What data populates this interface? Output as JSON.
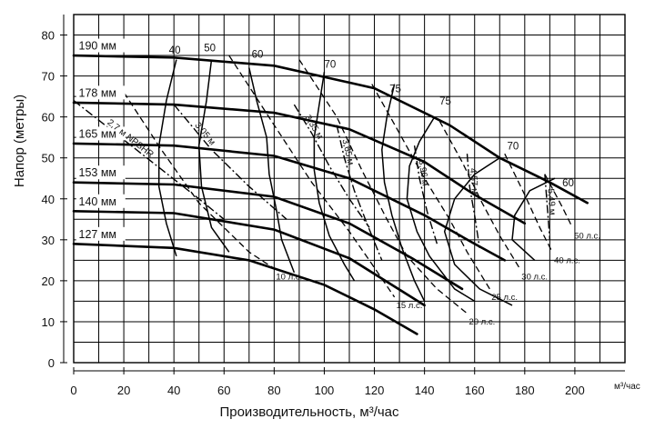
{
  "chart_data": {
    "type": "line",
    "title": "",
    "xlabel": "Производительность, м³/час",
    "ylabel": "Напор (метры)",
    "x_unit": "м³/час",
    "xlim": [
      0,
      220
    ],
    "ylim": [
      0,
      85
    ],
    "x_ticks": [
      0,
      20,
      40,
      60,
      80,
      100,
      120,
      140,
      160,
      180,
      200
    ],
    "y_ticks": [
      0,
      10,
      20,
      30,
      40,
      50,
      60,
      70,
      80
    ],
    "grid": true,
    "impeller_curves": [
      {
        "name": "190 мм",
        "points": [
          [
            0,
            75
          ],
          [
            40,
            74.5
          ],
          [
            80,
            72.5
          ],
          [
            120,
            67
          ],
          [
            150,
            58
          ],
          [
            170,
            50
          ],
          [
            190,
            44
          ],
          [
            205,
            39
          ]
        ]
      },
      {
        "name": "178 мм",
        "points": [
          [
            0,
            63.5
          ],
          [
            40,
            63
          ],
          [
            80,
            61
          ],
          [
            110,
            57
          ],
          [
            140,
            49
          ],
          [
            160,
            41
          ],
          [
            180,
            34
          ]
        ]
      },
      {
        "name": "165 мм",
        "points": [
          [
            0,
            53.5
          ],
          [
            40,
            53
          ],
          [
            80,
            50.5
          ],
          [
            110,
            45
          ],
          [
            140,
            36
          ],
          [
            160,
            29
          ],
          [
            172,
            25
          ]
        ]
      },
      {
        "name": "153 мм",
        "points": [
          [
            0,
            44
          ],
          [
            40,
            43.5
          ],
          [
            80,
            40.5
          ],
          [
            110,
            34
          ],
          [
            135,
            25.5
          ],
          [
            155,
            18
          ]
        ]
      },
      {
        "name": "140 мм",
        "points": [
          [
            0,
            37
          ],
          [
            40,
            36.5
          ],
          [
            80,
            32.5
          ],
          [
            110,
            25.5
          ],
          [
            140,
            14
          ]
        ]
      },
      {
        "name": "127 мм",
        "points": [
          [
            0,
            29
          ],
          [
            40,
            28
          ],
          [
            70,
            25
          ],
          [
            100,
            19
          ],
          [
            120,
            13
          ],
          [
            137,
            7
          ]
        ]
      }
    ],
    "efficiency_curves": [
      {
        "label": "40",
        "points": [
          [
            41,
            74
          ],
          [
            37,
            64
          ],
          [
            34,
            53
          ],
          [
            34,
            43
          ],
          [
            37,
            34
          ],
          [
            41,
            26
          ]
        ]
      },
      {
        "label": "50",
        "points": [
          [
            55,
            74
          ],
          [
            53,
            64
          ],
          [
            50,
            53
          ],
          [
            51,
            43
          ],
          [
            55,
            33
          ],
          [
            62,
            27
          ]
        ]
      },
      {
        "label": "60",
        "points": [
          [
            70,
            72
          ],
          [
            73,
            64
          ],
          [
            77,
            55
          ],
          [
            78,
            46
          ],
          [
            81,
            37
          ],
          [
            83,
            30
          ],
          [
            88,
            22
          ]
        ]
      },
      {
        "label": "70",
        "points": [
          [
            100,
            71
          ],
          [
            98,
            63
          ],
          [
            96,
            55
          ],
          [
            96,
            47
          ],
          [
            98,
            39
          ],
          [
            102,
            31
          ],
          [
            108,
            24
          ],
          [
            112,
            20
          ]
        ]
      },
      {
        "label": "75",
        "points": [
          [
            128,
            68
          ],
          [
            125,
            60
          ],
          [
            123,
            52
          ],
          [
            124,
            44
          ],
          [
            127,
            36
          ],
          [
            131,
            28
          ],
          [
            136,
            20
          ],
          [
            140,
            15
          ]
        ]
      },
      {
        "label": "75",
        "points": [
          [
            144,
            60
          ],
          [
            138,
            54
          ],
          [
            134,
            48
          ],
          [
            133,
            40
          ],
          [
            137,
            32
          ],
          [
            142,
            26
          ],
          [
            152,
            18
          ],
          [
            160,
            15
          ]
        ]
      },
      {
        "label": "70",
        "points": [
          [
            170,
            50
          ],
          [
            160,
            46
          ],
          [
            152,
            40
          ],
          [
            148,
            32
          ],
          [
            152,
            24
          ],
          [
            162,
            18
          ],
          [
            175,
            14
          ]
        ]
      },
      {
        "label": "60",
        "points": [
          [
            192,
            45
          ],
          [
            182,
            42
          ],
          [
            176,
            36
          ],
          [
            175,
            30
          ],
          [
            184,
            25
          ]
        ]
      }
    ],
    "efficiency_label_positions": [
      [
        38,
        75.5
      ],
      [
        52,
        76
      ],
      [
        71,
        74.5
      ],
      [
        100,
        72
      ],
      [
        126,
        66
      ],
      [
        146,
        63
      ],
      [
        173,
        52
      ],
      [
        195,
        43
      ]
    ],
    "power_curves": [
      {
        "label": "10 л.с.",
        "points": [
          [
            20,
            66
          ],
          [
            35,
            52
          ],
          [
            50,
            39
          ],
          [
            70,
            27
          ],
          [
            80,
            23
          ]
        ]
      },
      {
        "label": "15 л.с.",
        "points": [
          [
            62,
            75
          ],
          [
            80,
            58
          ],
          [
            95,
            44
          ],
          [
            110,
            32
          ],
          [
            118,
            25
          ],
          [
            128,
            16
          ]
        ]
      },
      {
        "label": "20 л.с.",
        "points": [
          [
            90,
            74
          ],
          [
            105,
            60
          ],
          [
            115,
            47
          ],
          [
            125,
            35
          ],
          [
            133,
            26
          ],
          [
            145,
            18
          ],
          [
            157,
            12
          ]
        ]
      },
      {
        "label": "25 л.с.",
        "points": [
          [
            119,
            68
          ],
          [
            130,
            56
          ],
          [
            140,
            45
          ],
          [
            150,
            35
          ],
          [
            157,
            27
          ],
          [
            166,
            18
          ]
        ]
      },
      {
        "label": "30 л.с.",
        "points": [
          [
            146,
            59
          ],
          [
            155,
            49
          ],
          [
            163,
            39
          ],
          [
            170,
            31
          ],
          [
            178,
            23
          ]
        ]
      },
      {
        "label": "40 л.с.",
        "points": [
          [
            172,
            51
          ],
          [
            180,
            41
          ],
          [
            186,
            33
          ],
          [
            191,
            27
          ]
        ]
      },
      {
        "label": "50 л.с.",
        "points": [
          [
            188,
            46
          ],
          [
            195,
            38
          ],
          [
            199,
            33
          ]
        ]
      }
    ],
    "npsh_curves": [
      {
        "label": "2,7 м NPSHR",
        "points": [
          [
            0,
            64
          ],
          [
            25,
            52
          ],
          [
            50,
            40
          ],
          [
            60,
            35
          ]
        ]
      },
      {
        "label": "3,05 м",
        "points": [
          [
            40,
            63
          ],
          [
            55,
            52
          ],
          [
            70,
            43
          ],
          [
            85,
            35
          ]
        ]
      },
      {
        "label": "3,35 м",
        "points": [
          [
            88,
            63
          ],
          [
            95,
            56
          ],
          [
            102,
            48
          ],
          [
            110,
            40
          ],
          [
            118,
            33
          ]
        ]
      },
      {
        "label": "3,65 м",
        "points": [
          [
            105,
            58
          ],
          [
            108,
            50
          ],
          [
            112,
            42
          ],
          [
            117,
            34
          ],
          [
            123,
            25
          ]
        ]
      },
      {
        "label": "3,96 м",
        "points": [
          [
            136,
            53
          ],
          [
            138,
            45
          ],
          [
            141,
            37
          ],
          [
            145,
            29
          ]
        ]
      },
      {
        "label": "4,57 м",
        "points": [
          [
            157,
            51
          ],
          [
            158,
            43
          ],
          [
            160,
            36
          ],
          [
            162,
            28
          ]
        ]
      },
      {
        "label": "5,49 м",
        "points": [
          [
            188,
            46
          ],
          [
            189,
            38
          ],
          [
            190,
            30
          ]
        ]
      }
    ],
    "diameter_labels": [
      "190 мм",
      "178 мм",
      "165 мм",
      "153 мм",
      "140 мм",
      "127 мм"
    ]
  }
}
